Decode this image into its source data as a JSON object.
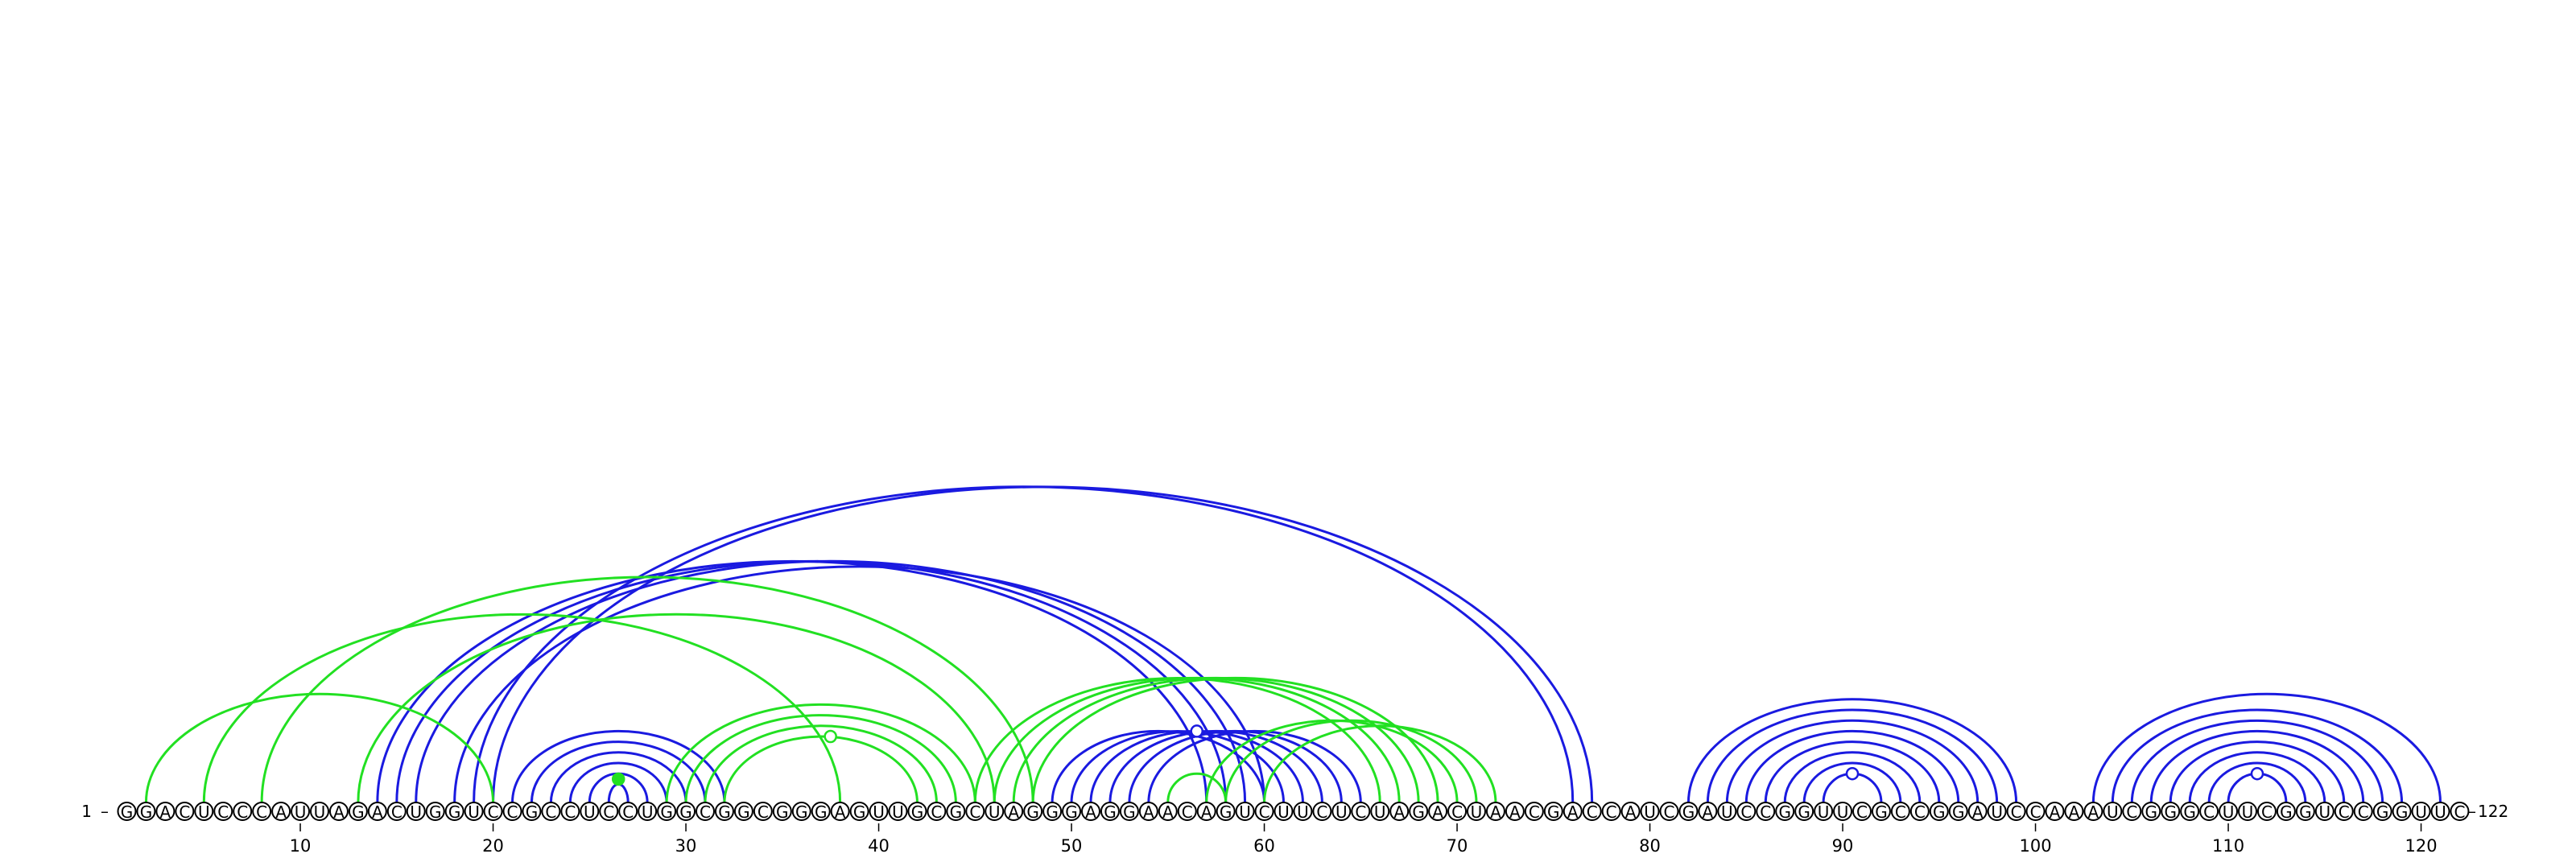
{
  "sequence": "GGACUCCCAUUAGACUGGUCCGCCUCCUGGCGGCGGGAGUUGCGCUAGGGAGGAACAGUCUUCUCUAGACUAACGACCAUCGAUCCGGUUCGCCGGAUCCAAAUCGGGCUUCGGUCCGGUUC",
  "start_label": "1",
  "end_label": "122",
  "ticks": [
    "10",
    "20",
    "30",
    "40",
    "50",
    "60",
    "70",
    "80",
    "90",
    "100",
    "110",
    "120"
  ],
  "colors": {
    "blue": "#1a1ae0",
    "green": "#22e022"
  },
  "arcs": {
    "blue": [
      [
        21,
        32
      ],
      [
        22,
        31
      ],
      [
        23,
        30
      ],
      [
        24,
        29
      ],
      [
        25,
        28
      ],
      [
        26,
        27
      ],
      [
        14,
        57
      ],
      [
        15,
        58
      ],
      [
        16,
        59
      ],
      [
        18,
        60
      ],
      [
        19,
        76
      ],
      [
        20,
        77
      ],
      [
        49,
        60
      ],
      [
        50,
        61
      ],
      [
        51,
        62
      ],
      [
        52,
        63
      ],
      [
        53,
        64
      ],
      [
        54,
        65
      ],
      [
        82,
        99
      ],
      [
        83,
        98
      ],
      [
        84,
        97
      ],
      [
        85,
        96
      ],
      [
        86,
        95
      ],
      [
        87,
        94
      ],
      [
        88,
        93
      ],
      [
        89,
        92
      ],
      [
        103,
        121
      ],
      [
        104,
        119
      ],
      [
        105,
        118
      ],
      [
        106,
        117
      ],
      [
        107,
        116
      ],
      [
        108,
        115
      ],
      [
        109,
        114
      ],
      [
        110,
        113
      ]
    ],
    "green": [
      [
        2,
        20
      ],
      [
        5,
        38
      ],
      [
        8,
        48
      ],
      [
        13,
        46
      ],
      [
        29,
        45
      ],
      [
        30,
        44
      ],
      [
        31,
        43
      ],
      [
        32,
        42
      ],
      [
        45,
        66
      ],
      [
        46,
        67
      ],
      [
        47,
        68
      ],
      [
        48,
        69
      ],
      [
        55,
        58
      ],
      [
        57,
        70
      ],
      [
        58,
        71
      ],
      [
        60,
        72
      ]
    ]
  },
  "markers": {
    "blue": [
      56.5,
      90.5,
      111.5
    ],
    "green": [
      26.5,
      37.5
    ]
  }
}
